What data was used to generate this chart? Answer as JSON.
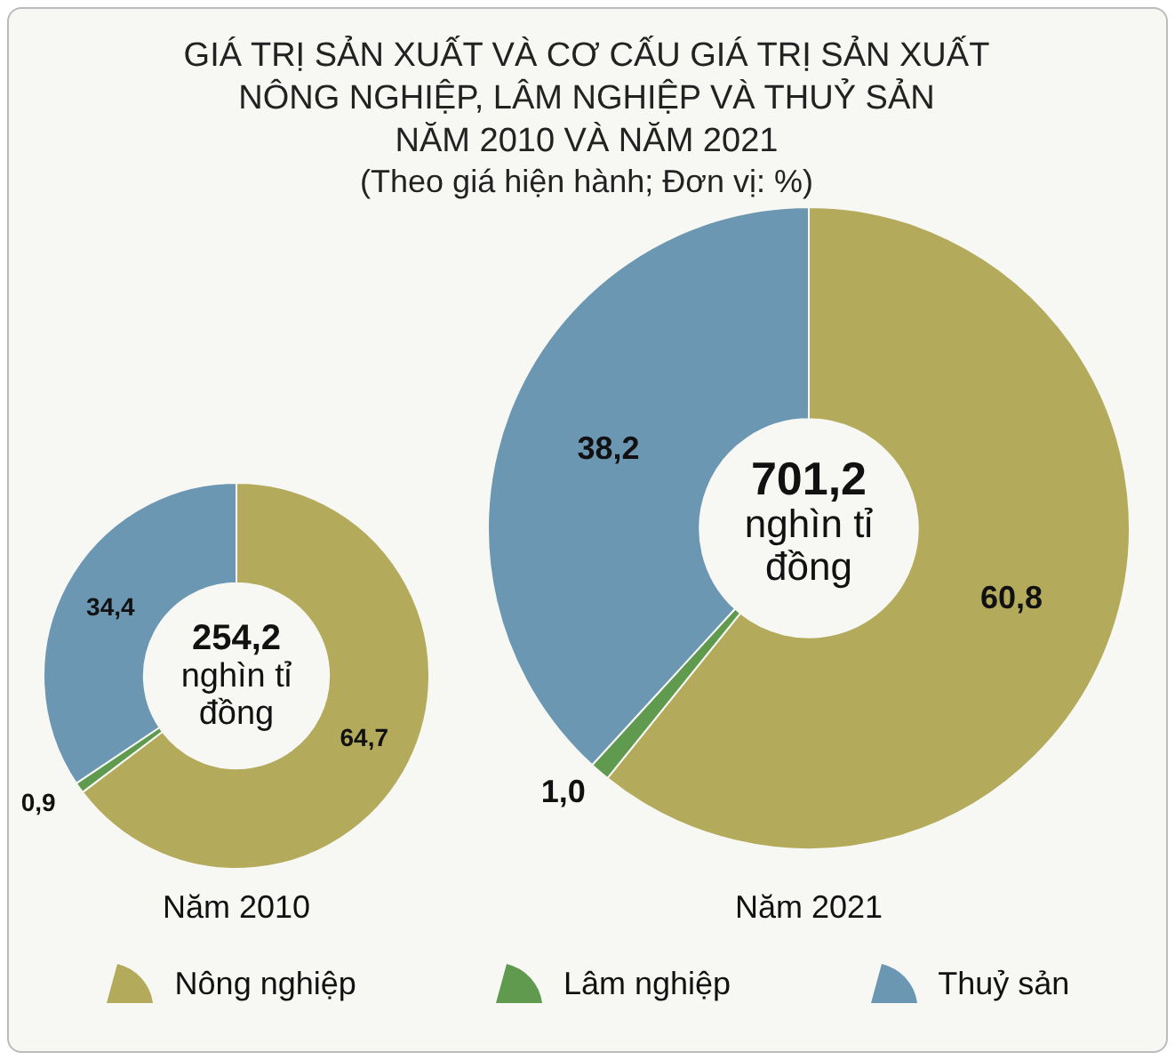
{
  "chart_data": [
    {
      "type": "donut",
      "xlabel": "Năm 2010",
      "categories": [
        null,
        null,
        null
      ],
      "values": [
        64.7,
        0.9,
        34.4
      ],
      "value_labels": [
        "64,7",
        "0,9",
        "34,4"
      ],
      "colors": [
        "#b3ab5b",
        "#5f9a4f",
        "#6b97b2"
      ],
      "annotations": [
        "254,2",
        "nghìn tỉ đồng"
      ]
    },
    {
      "type": "donut",
      "title": "GIÁ TRỊ SẢN XUẤT VÀ CƠ CẤU GIÁ TRỊ SẢN XUẤT\nNÔNG NGHIỆP, LÂM NGHIỆP VÀ THUỶ SẢN\nNĂM 2010 VÀ NĂM 2021",
      "subtitle": "(Theo giá hiện hành; Đơn vị: %)",
      "xlabel": "Năm 2021",
      "categories": [
        "Nông nghiệp",
        "Lâm nghiệp",
        "Thuỷ sản"
      ],
      "values": [
        60.8,
        1.0,
        38.2
      ],
      "value_labels": [
        "60,8",
        "1,0",
        "38,2"
      ],
      "colors": [
        "#b3ab5b",
        "#5f9a4f",
        "#6b97b2"
      ],
      "annotations": [
        "701,2",
        "nghìn tỉ đồng"
      ],
      "legend": "bottom"
    }
  ]
}
